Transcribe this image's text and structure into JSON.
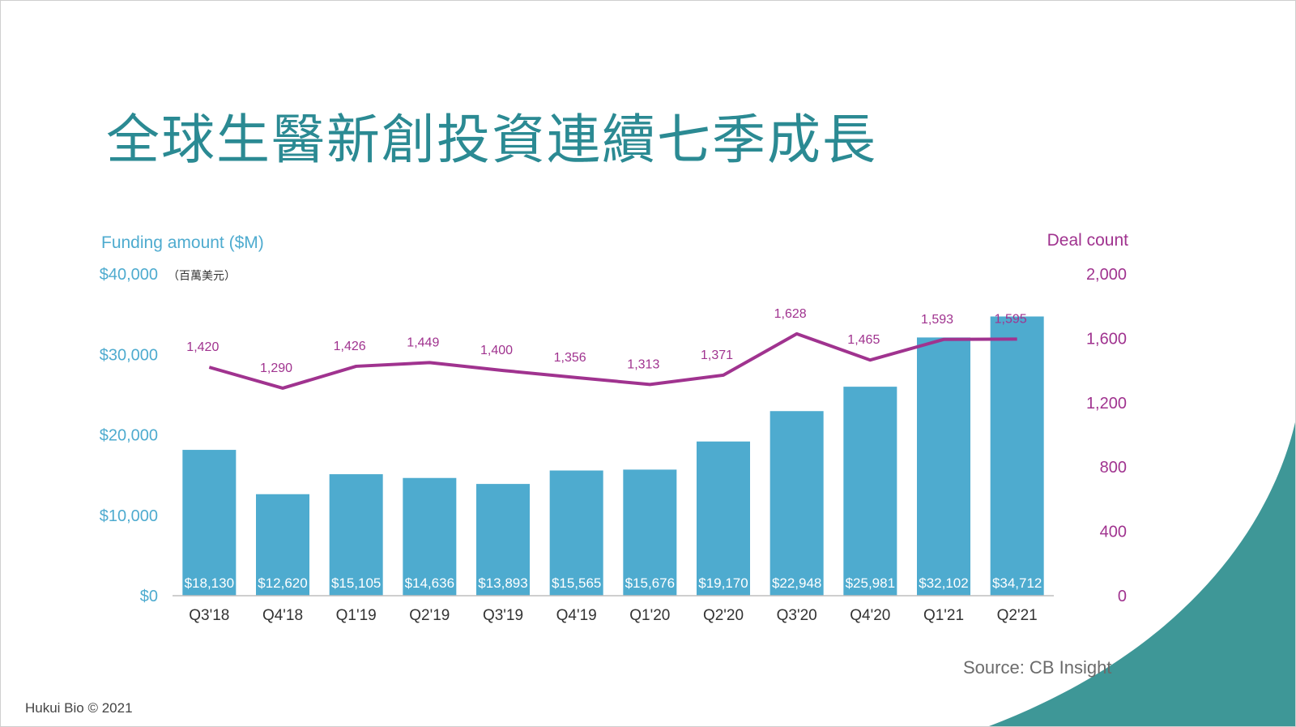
{
  "slide": {
    "title": "全球生醫新創投資連續七季成長",
    "source": "Source: CB Insight",
    "footer": "Hukui Bio © 2021"
  },
  "colors": {
    "title": "#2b8a93",
    "bar": "#4eabcf",
    "line": "#a0338f",
    "left_axis": "#4eabcf",
    "right_axis": "#a0338f",
    "corner_shape": "#3e9797"
  },
  "chart_data": {
    "type": "bar",
    "categories": [
      "Q3'18",
      "Q4'18",
      "Q1'19",
      "Q2'19",
      "Q3'19",
      "Q4'19",
      "Q1'20",
      "Q2'20",
      "Q3'20",
      "Q4'20",
      "Q1'21",
      "Q2'21"
    ],
    "series": [
      {
        "name": "Funding amount ($M)",
        "type": "bar",
        "axis": "left",
        "values": [
          18130,
          12620,
          15105,
          14636,
          13893,
          15565,
          15676,
          19170,
          22948,
          25981,
          32102,
          34712
        ],
        "data_labels": [
          "$18,130",
          "$12,620",
          "$15,105",
          "$14,636",
          "$13,893",
          "$15,565",
          "$15,676",
          "$19,170",
          "$22,948",
          "$25,981",
          "$32,102",
          "$34,712"
        ]
      },
      {
        "name": "Deal count",
        "type": "line",
        "axis": "right",
        "values": [
          1420,
          1290,
          1426,
          1449,
          1400,
          1356,
          1313,
          1371,
          1628,
          1465,
          1593,
          1595
        ],
        "data_labels": [
          "1,420",
          "1,290",
          "1,426",
          "1,449",
          "1,400",
          "1,356",
          "1,313",
          "1,371",
          "1,628",
          "1,465",
          "1,593",
          "1,595"
        ]
      }
    ],
    "ylabel": "Funding amount ($M)",
    "ylabel_note": "（百萬美元）",
    "ylim": [
      0,
      40000
    ],
    "yticks": [
      "$0",
      "$10,000",
      "$20,000",
      "$30,000",
      "$40,000"
    ],
    "y2label": "Deal count",
    "y2lim": [
      0,
      2000
    ],
    "y2ticks": [
      "0",
      "400",
      "800",
      "1,200",
      "1,600",
      "2,000"
    ],
    "grid": false
  }
}
